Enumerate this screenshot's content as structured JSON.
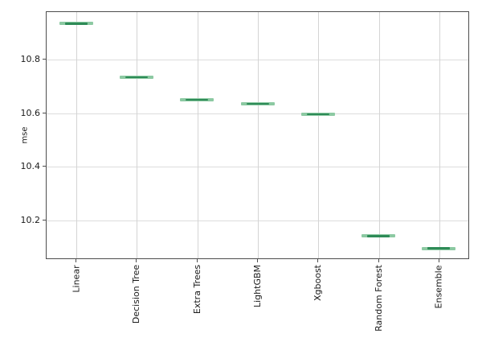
{
  "chart_data": {
    "type": "boxplot",
    "title": "",
    "categories": [
      "Linear",
      "Decision Tree",
      "Extra Trees",
      "LightGBM",
      "Xgboost",
      "Random Forest",
      "Ensemble"
    ],
    "values": [
      10.933,
      10.733,
      10.649,
      10.633,
      10.594,
      10.14,
      10.094
    ],
    "xlabel": "",
    "ylabel": "mse",
    "ylim": [
      10.054,
      10.979
    ],
    "yticks": [
      10.2,
      10.4,
      10.6,
      10.8
    ],
    "ytick_labels": [
      "10.2",
      "10.4",
      "10.6",
      "10.8"
    ],
    "grid": true,
    "legend": "none",
    "x_label_rotation_deg": 90,
    "colors": {
      "box_fill": "#8cc9a2",
      "median_line": "#2e8b57",
      "grid_h": "#dcdcdc",
      "grid_v": "#d4d4d4",
      "spine": "#4d4d4d",
      "tick_text": "#1a1a1a",
      "background": "#ffffff"
    }
  }
}
